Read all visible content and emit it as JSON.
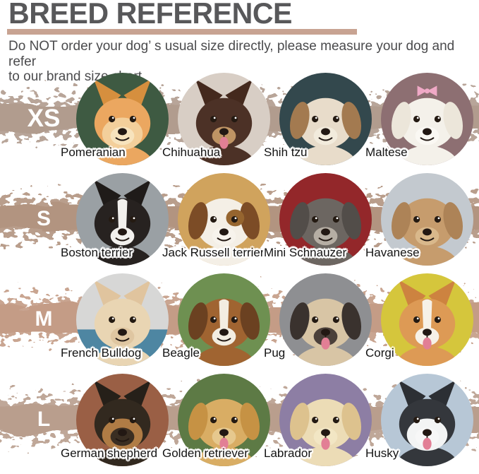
{
  "header": {
    "title": "BREED REFERENCE",
    "subtitle_line1": "Do NOT order your dog’ s usual size directly, please measure your dog and refer",
    "subtitle_line2": "to our brand size chart",
    "title_color": "#58585a",
    "divider_color": "#c8a392",
    "text_color": "#4b4b4d"
  },
  "palette": {
    "eye": "#241a12",
    "nose": "#221813",
    "tongue": "#e27f95",
    "breed_label_color": "#141414",
    "size_label_color": "#ffffff"
  },
  "rows": [
    {
      "size": "XS",
      "band_color": "#b19c8e",
      "seed": 3,
      "breeds": [
        {
          "name": "Pomeranian",
          "bg": "#3e5a42",
          "fur": "#eba760",
          "ear": "pointy",
          "ear_color": "#d68f3e",
          "face": "#f3cf9b",
          "muzzle": "#f7e3bd",
          "tongue": false
        },
        {
          "name": "Chihuahua",
          "bg": "#d8cec5",
          "fur": "#4c3126",
          "ear": "pointy",
          "ear_color": "#44291d",
          "muzzle": "#bf9464",
          "tongue": true
        },
        {
          "name": "Shih tzu",
          "bg": "#33484d",
          "fur": "#e8dcca",
          "ear": "floppy",
          "ear_color": "#a37a50",
          "muzzle": "#f2ebdc",
          "tongue": false
        },
        {
          "name": "Maltese",
          "bg": "#8d6f72",
          "fur": "#f4f1ea",
          "ear": "floppy",
          "ear_color": "#ece6da",
          "muzzle": "#faf8f3",
          "tongue": false,
          "bow": "#f0a9c6"
        }
      ]
    },
    {
      "size": "S",
      "band_color": "#b29480",
      "seed": 11,
      "breeds": [
        {
          "name": "Boston terrier",
          "bg": "#9aa0a4",
          "fur": "#272220",
          "ear": "pointy",
          "ear_color": "#1f1b19",
          "blaze": "#f2f0ed",
          "muzzle": "#f2f0ed",
          "tongue": false
        },
        {
          "name": "Jack Russell terrier",
          "bg": "#d0a35d",
          "fur": "#f4efe6",
          "ear": "floppy",
          "ear_color": "#7c4c26",
          "eyepatch": "#96652f",
          "muzzle": "#f7f3ec",
          "tongue": false
        },
        {
          "name": "Mini Schnauzer",
          "bg": "#93272a",
          "fur": "#6c6661",
          "ear": "floppy",
          "ear_color": "#524d49",
          "muzzle": "#b6aea4",
          "tongue": false
        },
        {
          "name": "Havanese",
          "bg": "#c3c9cf",
          "fur": "#c69c6d",
          "ear": "floppy",
          "ear_color": "#ad8357",
          "muzzle": "#d9b88b",
          "tongue": false
        }
      ]
    },
    {
      "size": "M",
      "band_color": "#c49c86",
      "seed": 23,
      "breeds": [
        {
          "name": "French Bulldog",
          "bg": "#d7d7d6",
          "bg2": "#4e86a2",
          "fur": "#e9d5b3",
          "ear": "pointy",
          "ear_color": "#e0c49e",
          "muzzle": "#dfc6a1",
          "tongue": false
        },
        {
          "name": "Beagle",
          "bg": "#6e9051",
          "fur": "#a06431",
          "ear": "floppy",
          "ear_color": "#6b4121",
          "blaze": "#f3ede1",
          "muzzle": "#f3ede1",
          "tongue": false
        },
        {
          "name": "Pug",
          "bg": "#8e8f92",
          "fur": "#d8c5a5",
          "ear": "floppy",
          "ear_color": "#3a322e",
          "muzzle": "#4b403a",
          "tongue": true
        },
        {
          "name": "Corgi",
          "bg": "#d5c63c",
          "fur": "#dd9a55",
          "ear": "pointy",
          "ear_color": "#cd8340",
          "blaze": "#f6f1e7",
          "muzzle": "#f6f1e7",
          "tongue": true
        }
      ]
    },
    {
      "size": "L",
      "band_color": "#b99e8d",
      "seed": 31,
      "breeds": [
        {
          "name": "German shepherd",
          "bg": "#9a5f45",
          "fur": "#32291f",
          "ear": "pointy",
          "ear_color": "#262019",
          "face": "#b07c45",
          "muzzle": "#3a2e22",
          "tongue": false
        },
        {
          "name": "Golden retriever",
          "bg": "#5d7a45",
          "fur": "#d9ad64",
          "ear": "floppy",
          "ear_color": "#c69244",
          "muzzle": "#e6c88e",
          "tongue": true
        },
        {
          "name": "Labrador",
          "bg": "#8d7ea4",
          "fur": "#ecdcb6",
          "ear": "floppy",
          "ear_color": "#ddc28e",
          "muzzle": "#f2e6c4",
          "tongue": true
        },
        {
          "name": "Husky",
          "bg": "#b7c7d6",
          "fur": "#34373c",
          "ear": "pointy",
          "ear_color": "#2c2f34",
          "face": "#f3f4f4",
          "muzzle": "#f7f7f7",
          "tongue": true
        }
      ]
    }
  ]
}
